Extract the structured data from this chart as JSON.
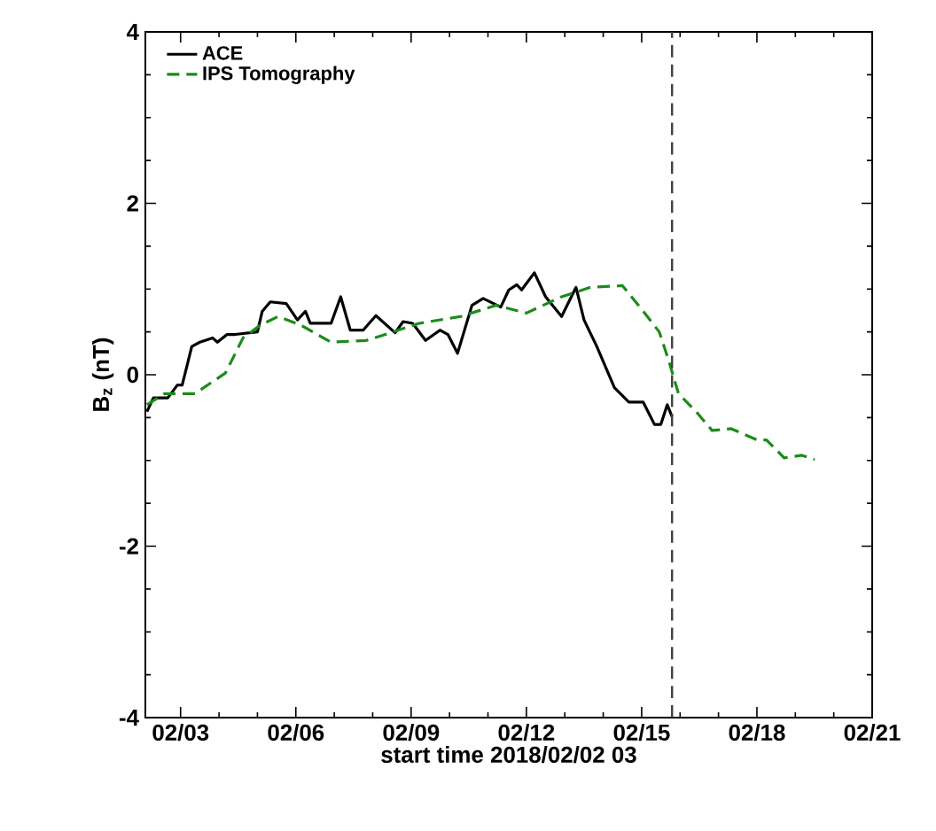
{
  "chart_data": {
    "type": "line",
    "xlabel": "start time 2018/02/02 03",
    "ylabel": "B$_{z}$ (nT)",
    "xlim": [
      "2018-02-02T02:00",
      "2018-02-21"
    ],
    "ylim": [
      -4,
      4
    ],
    "xticks": [
      {
        "value": "2018-02-03",
        "label": "02/03"
      },
      {
        "value": "2018-02-06",
        "label": "02/06"
      },
      {
        "value": "2018-02-09",
        "label": "02/09"
      },
      {
        "value": "2018-02-12",
        "label": "02/12"
      },
      {
        "value": "2018-02-15",
        "label": "02/15"
      },
      {
        "value": "2018-02-18",
        "label": "02/18"
      },
      {
        "value": "2018-02-21",
        "label": "02/21"
      }
    ],
    "yticks": [
      -4,
      -2,
      0,
      2,
      4
    ],
    "legend": "top left",
    "grid": false,
    "ref_lines": [
      {
        "axis": "x",
        "value": "2018-02-15T19:00",
        "color": "#404040",
        "line_style": "dashed"
      }
    ],
    "series": [
      {
        "name": "ACE",
        "color": "#000000",
        "line_style": "solid",
        "x": [
          "2018-02-02T03:00",
          "2018-02-02T07:00",
          "2018-02-02T16:00",
          "2018-02-02T22:00",
          "2018-02-03T01:00",
          "2018-02-03T07:00",
          "2018-02-03T12:00",
          "2018-02-03T20:00",
          "2018-02-03T23:00",
          "2018-02-04T05:00",
          "2018-02-04T10:00",
          "2018-02-05T00:00",
          "2018-02-05T03:00",
          "2018-02-05T08:00",
          "2018-02-05T18:00",
          "2018-02-06T01:00",
          "2018-02-06T06:00",
          "2018-02-06T09:00",
          "2018-02-06T22:00",
          "2018-02-07T04:00",
          "2018-02-07T10:00",
          "2018-02-07T18:00",
          "2018-02-08T02:00",
          "2018-02-08T14:00",
          "2018-02-08T19:00",
          "2018-02-09T01:00",
          "2018-02-09T09:00",
          "2018-02-09T18:00",
          "2018-02-09T23:00",
          "2018-02-10T05:00",
          "2018-02-10T14:00",
          "2018-02-10T21:00",
          "2018-02-11T08:00",
          "2018-02-11T13:00",
          "2018-02-11T18:00",
          "2018-02-11T21:00",
          "2018-02-12T05:00",
          "2018-02-12T12:00",
          "2018-02-12T22:00",
          "2018-02-13T07:00",
          "2018-02-13T12:00",
          "2018-02-13T20:00",
          "2018-02-14T07:00",
          "2018-02-14T16:00",
          "2018-02-15T01:00",
          "2018-02-15T08:00",
          "2018-02-15T12:00",
          "2018-02-15T16:00",
          "2018-02-15T19:00"
        ],
        "values": [
          -0.43,
          -0.27,
          -0.27,
          -0.12,
          -0.12,
          0.33,
          0.38,
          0.43,
          0.38,
          0.47,
          0.47,
          0.5,
          0.74,
          0.85,
          0.83,
          0.64,
          0.74,
          0.6,
          0.6,
          0.91,
          0.52,
          0.52,
          0.69,
          0.49,
          0.62,
          0.6,
          0.4,
          0.52,
          0.47,
          0.25,
          0.81,
          0.89,
          0.79,
          0.99,
          1.05,
          0.99,
          1.19,
          0.91,
          0.68,
          1.02,
          0.64,
          0.33,
          -0.15,
          -0.32,
          -0.32,
          -0.58,
          -0.58,
          -0.35,
          -0.49
        ]
      },
      {
        "name": "IPS Tomography",
        "color": "#1a8c1a",
        "line_style": "dashed",
        "x": [
          "2018-02-02T03:00",
          "2018-02-02T14:00",
          "2018-02-03T09:00",
          "2018-02-04T04:00",
          "2018-02-04T15:00",
          "2018-02-05T02:00",
          "2018-02-05T13:00",
          "2018-02-06T03:00",
          "2018-02-06T22:00",
          "2018-02-07T20:00",
          "2018-02-08T11:00",
          "2018-02-09T05:00",
          "2018-02-10T07:00",
          "2018-02-11T05:00",
          "2018-02-12T00:00",
          "2018-02-12T22:00",
          "2018-02-13T16:00",
          "2018-02-14T12:00",
          "2018-02-15T01:00",
          "2018-02-15T11:00",
          "2018-02-15T17:00",
          "2018-02-15T23:00",
          "2018-02-16T10:00",
          "2018-02-16T20:00",
          "2018-02-17T08:00",
          "2018-02-18T00:00",
          "2018-02-18T06:00",
          "2018-02-18T17:00",
          "2018-02-19T04:00",
          "2018-02-19T12:00"
        ],
        "values": [
          -0.35,
          -0.22,
          -0.22,
          0.02,
          0.43,
          0.58,
          0.68,
          0.58,
          0.38,
          0.4,
          0.49,
          0.6,
          0.68,
          0.81,
          0.72,
          0.91,
          1.02,
          1.04,
          0.74,
          0.5,
          0.16,
          -0.22,
          -0.43,
          -0.65,
          -0.63,
          -0.76,
          -0.76,
          -0.97,
          -0.94,
          -0.99
        ]
      }
    ]
  }
}
